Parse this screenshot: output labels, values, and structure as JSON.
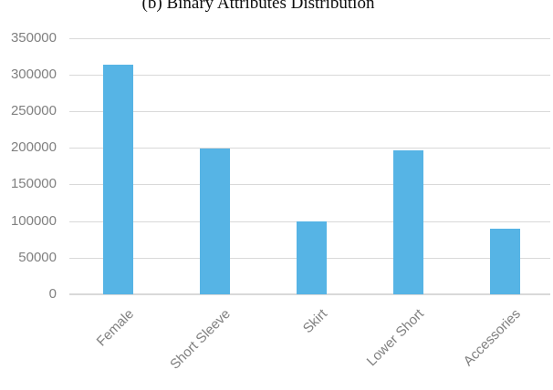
{
  "chart_data": {
    "type": "bar",
    "title": "(b) Binary Attributes Distribution",
    "categories": [
      "Female",
      "Short Sleeve",
      "Skirt",
      "Lower Short",
      "Accessories"
    ],
    "values": [
      313000,
      199000,
      99000,
      197000,
      90000
    ],
    "xlabel": "",
    "ylabel": "",
    "ylim": [
      0,
      350000
    ],
    "ytick_step": 50000,
    "ytick_labels": [
      "0",
      "50000",
      "100000",
      "150000",
      "200000",
      "250000",
      "300000",
      "350000"
    ],
    "grid": true,
    "legend": false,
    "colors": {
      "bar": "#56b4e5",
      "gridline": "#d9d9d9",
      "axis_labels": "#808080",
      "title": "#0d0d0d"
    }
  }
}
